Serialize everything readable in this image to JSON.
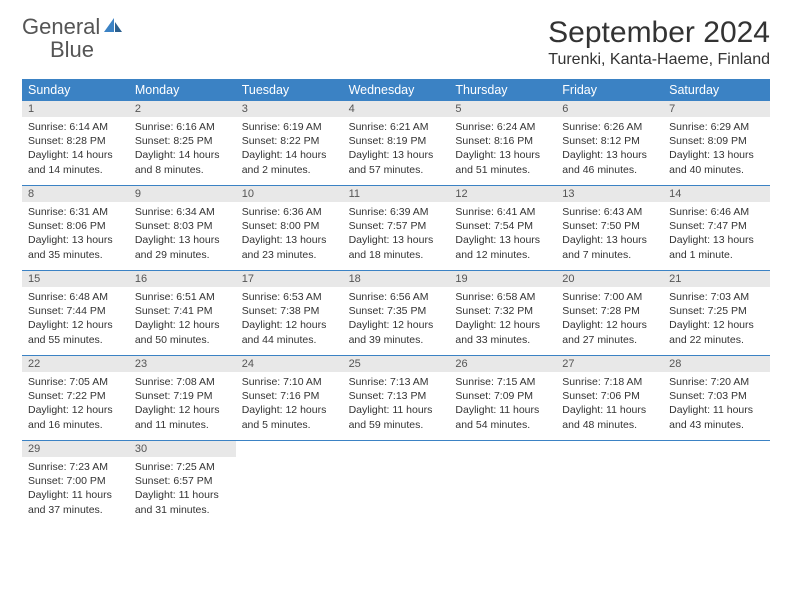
{
  "logo": {
    "word1": "General",
    "word2": "Blue"
  },
  "header": {
    "month_title": "September 2024",
    "location": "Turenki, Kanta-Haeme, Finland"
  },
  "colors": {
    "accent": "#3b82c4",
    "daynum_bg": "#e8e8e8",
    "text": "#333333",
    "bg": "#ffffff"
  },
  "dow": [
    "Sunday",
    "Monday",
    "Tuesday",
    "Wednesday",
    "Thursday",
    "Friday",
    "Saturday"
  ],
  "days": [
    {
      "n": "1",
      "sunrise": "6:14 AM",
      "sunset": "8:28 PM",
      "daylight": "14 hours and 14 minutes."
    },
    {
      "n": "2",
      "sunrise": "6:16 AM",
      "sunset": "8:25 PM",
      "daylight": "14 hours and 8 minutes."
    },
    {
      "n": "3",
      "sunrise": "6:19 AM",
      "sunset": "8:22 PM",
      "daylight": "14 hours and 2 minutes."
    },
    {
      "n": "4",
      "sunrise": "6:21 AM",
      "sunset": "8:19 PM",
      "daylight": "13 hours and 57 minutes."
    },
    {
      "n": "5",
      "sunrise": "6:24 AM",
      "sunset": "8:16 PM",
      "daylight": "13 hours and 51 minutes."
    },
    {
      "n": "6",
      "sunrise": "6:26 AM",
      "sunset": "8:12 PM",
      "daylight": "13 hours and 46 minutes."
    },
    {
      "n": "7",
      "sunrise": "6:29 AM",
      "sunset": "8:09 PM",
      "daylight": "13 hours and 40 minutes."
    },
    {
      "n": "8",
      "sunrise": "6:31 AM",
      "sunset": "8:06 PM",
      "daylight": "13 hours and 35 minutes."
    },
    {
      "n": "9",
      "sunrise": "6:34 AM",
      "sunset": "8:03 PM",
      "daylight": "13 hours and 29 minutes."
    },
    {
      "n": "10",
      "sunrise": "6:36 AM",
      "sunset": "8:00 PM",
      "daylight": "13 hours and 23 minutes."
    },
    {
      "n": "11",
      "sunrise": "6:39 AM",
      "sunset": "7:57 PM",
      "daylight": "13 hours and 18 minutes."
    },
    {
      "n": "12",
      "sunrise": "6:41 AM",
      "sunset": "7:54 PM",
      "daylight": "13 hours and 12 minutes."
    },
    {
      "n": "13",
      "sunrise": "6:43 AM",
      "sunset": "7:50 PM",
      "daylight": "13 hours and 7 minutes."
    },
    {
      "n": "14",
      "sunrise": "6:46 AM",
      "sunset": "7:47 PM",
      "daylight": "13 hours and 1 minute."
    },
    {
      "n": "15",
      "sunrise": "6:48 AM",
      "sunset": "7:44 PM",
      "daylight": "12 hours and 55 minutes."
    },
    {
      "n": "16",
      "sunrise": "6:51 AM",
      "sunset": "7:41 PM",
      "daylight": "12 hours and 50 minutes."
    },
    {
      "n": "17",
      "sunrise": "6:53 AM",
      "sunset": "7:38 PM",
      "daylight": "12 hours and 44 minutes."
    },
    {
      "n": "18",
      "sunrise": "6:56 AM",
      "sunset": "7:35 PM",
      "daylight": "12 hours and 39 minutes."
    },
    {
      "n": "19",
      "sunrise": "6:58 AM",
      "sunset": "7:32 PM",
      "daylight": "12 hours and 33 minutes."
    },
    {
      "n": "20",
      "sunrise": "7:00 AM",
      "sunset": "7:28 PM",
      "daylight": "12 hours and 27 minutes."
    },
    {
      "n": "21",
      "sunrise": "7:03 AM",
      "sunset": "7:25 PM",
      "daylight": "12 hours and 22 minutes."
    },
    {
      "n": "22",
      "sunrise": "7:05 AM",
      "sunset": "7:22 PM",
      "daylight": "12 hours and 16 minutes."
    },
    {
      "n": "23",
      "sunrise": "7:08 AM",
      "sunset": "7:19 PM",
      "daylight": "12 hours and 11 minutes."
    },
    {
      "n": "24",
      "sunrise": "7:10 AM",
      "sunset": "7:16 PM",
      "daylight": "12 hours and 5 minutes."
    },
    {
      "n": "25",
      "sunrise": "7:13 AM",
      "sunset": "7:13 PM",
      "daylight": "11 hours and 59 minutes."
    },
    {
      "n": "26",
      "sunrise": "7:15 AM",
      "sunset": "7:09 PM",
      "daylight": "11 hours and 54 minutes."
    },
    {
      "n": "27",
      "sunrise": "7:18 AM",
      "sunset": "7:06 PM",
      "daylight": "11 hours and 48 minutes."
    },
    {
      "n": "28",
      "sunrise": "7:20 AM",
      "sunset": "7:03 PM",
      "daylight": "11 hours and 43 minutes."
    },
    {
      "n": "29",
      "sunrise": "7:23 AM",
      "sunset": "7:00 PM",
      "daylight": "11 hours and 37 minutes."
    },
    {
      "n": "30",
      "sunrise": "7:25 AM",
      "sunset": "6:57 PM",
      "daylight": "11 hours and 31 minutes."
    }
  ],
  "labels": {
    "sunrise_prefix": "Sunrise: ",
    "sunset_prefix": "Sunset: ",
    "daylight_prefix": "Daylight: "
  },
  "layout": {
    "first_day_offset": 0,
    "weeks": 5,
    "total_cells": 35
  }
}
